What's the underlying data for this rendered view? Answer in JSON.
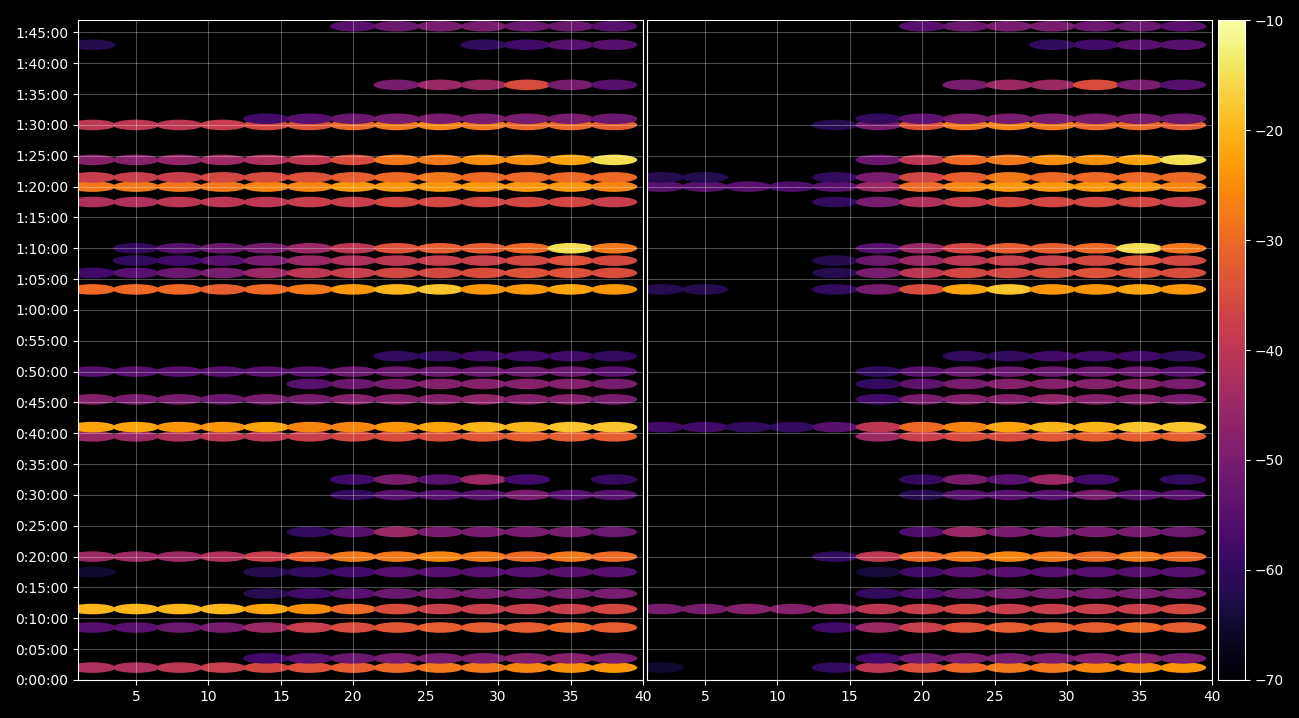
{
  "chart_data": {
    "type": "heatmap",
    "x": [
      2,
      5,
      8,
      11,
      14,
      17,
      20,
      23,
      26,
      29,
      32,
      35,
      38
    ],
    "y": [
      120,
      210,
      510,
      690,
      840,
      1050,
      1200,
      1440,
      1800,
      1950,
      2370,
      2460,
      2730,
      2880,
      3000,
      3150,
      3800,
      3960,
      4080,
      4200,
      4650,
      4800,
      4890,
      5060,
      5400,
      5460,
      5790,
      6180,
      6360
    ],
    "ylim": [
      0,
      6420
    ],
    "yticks": [
      {
        "value": 0,
        "label": "0:00:00"
      },
      {
        "value": 300,
        "label": "0:05:00"
      },
      {
        "value": 600,
        "label": "0:10:00"
      },
      {
        "value": 900,
        "label": "0:15:00"
      },
      {
        "value": 1200,
        "label": "0:20:00"
      },
      {
        "value": 1500,
        "label": "0:25:00"
      },
      {
        "value": 1800,
        "label": "0:30:00"
      },
      {
        "value": 2100,
        "label": "0:35:00"
      },
      {
        "value": 2400,
        "label": "0:40:00"
      },
      {
        "value": 2700,
        "label": "0:45:00"
      },
      {
        "value": 3000,
        "label": "0:50:00"
      },
      {
        "value": 3300,
        "label": "0:55:00"
      },
      {
        "value": 3600,
        "label": "1:00:00"
      },
      {
        "value": 3900,
        "label": "1:05:00"
      },
      {
        "value": 4200,
        "label": "1:10:00"
      },
      {
        "value": 4500,
        "label": "1:15:00"
      },
      {
        "value": 4800,
        "label": "1:20:00"
      },
      {
        "value": 5100,
        "label": "1:25:00"
      },
      {
        "value": 5400,
        "label": "1:30:00"
      },
      {
        "value": 5700,
        "label": "1:35:00"
      },
      {
        "value": 6000,
        "label": "1:40:00"
      },
      {
        "value": 6300,
        "label": "1:45:00"
      }
    ],
    "grid": true,
    "colorbar": {
      "range": [
        -70,
        -10
      ],
      "ticks": [
        {
          "value": -70,
          "label": "−70"
        },
        {
          "value": -60,
          "label": "−60"
        },
        {
          "value": -50,
          "label": "−50"
        },
        {
          "value": -40,
          "label": "−40"
        },
        {
          "value": -30,
          "label": "−30"
        },
        {
          "value": -20,
          "label": "−20"
        },
        {
          "value": -10,
          "label": "−10"
        }
      ]
    },
    "panels": [
      {
        "xlim": [
          1,
          40
        ],
        "xticks": [
          5,
          10,
          15,
          20,
          25,
          30,
          35,
          40
        ],
        "cells": [
          [
            -42,
            -42,
            -40,
            -38,
            -36,
            -34,
            -32,
            -30,
            -28,
            -28,
            -26,
            -25,
            -24
          ],
          [
            null,
            null,
            null,
            null,
            -58,
            -55,
            -52,
            -50,
            -50,
            -50,
            -48,
            -48,
            -50
          ],
          [
            -55,
            -55,
            -52,
            -50,
            -45,
            -38,
            -35,
            -33,
            -32,
            -32,
            -32,
            -30,
            -32
          ],
          [
            -20,
            -20,
            -20,
            -20,
            -22,
            -25,
            -30,
            -35,
            -38,
            -38,
            -38,
            -38,
            -36
          ],
          [
            null,
            null,
            null,
            null,
            -62,
            -58,
            -55,
            -52,
            -50,
            -50,
            -50,
            -50,
            -50
          ],
          [
            -65,
            null,
            null,
            null,
            -62,
            -60,
            -58,
            -55,
            -55,
            -55,
            -55,
            -55,
            -55
          ],
          [
            -45,
            -45,
            -45,
            -42,
            -38,
            -32,
            -28,
            -28,
            -26,
            -28,
            -30,
            -28,
            -30
          ],
          [
            null,
            null,
            null,
            null,
            null,
            -60,
            -55,
            -45,
            -50,
            -50,
            -50,
            -50,
            -52
          ],
          [
            null,
            null,
            null,
            null,
            null,
            null,
            -60,
            -55,
            -55,
            -55,
            -50,
            -55,
            -55
          ],
          [
            null,
            null,
            null,
            null,
            null,
            null,
            -58,
            -50,
            -55,
            -45,
            -58,
            null,
            -60
          ],
          [
            -45,
            -45,
            -42,
            -40,
            -40,
            -38,
            -36,
            -35,
            -35,
            -33,
            -32,
            -32,
            -32
          ],
          [
            -22,
            -22,
            -24,
            -24,
            -22,
            -26,
            -26,
            -24,
            -22,
            -20,
            -20,
            -18,
            -18
          ],
          [
            -48,
            -50,
            -50,
            -52,
            -50,
            -50,
            -48,
            -48,
            -48,
            -46,
            -48,
            -48,
            -50
          ],
          [
            null,
            null,
            null,
            null,
            null,
            -55,
            -52,
            -50,
            -48,
            -48,
            -48,
            -48,
            -50
          ],
          [
            -55,
            -55,
            -55,
            -55,
            -55,
            -55,
            -52,
            -52,
            -52,
            -52,
            -52,
            -52,
            -55
          ],
          [
            null,
            null,
            null,
            null,
            null,
            null,
            null,
            -60,
            -60,
            -58,
            -58,
            -58,
            -60
          ],
          [
            -30,
            -30,
            -30,
            -32,
            -30,
            -28,
            -24,
            -20,
            -18,
            -24,
            -24,
            -22,
            -24
          ],
          [
            -58,
            -55,
            -52,
            -50,
            -45,
            -40,
            -38,
            -36,
            -36,
            -35,
            -34,
            -34,
            -35
          ],
          [
            null,
            -60,
            -58,
            -55,
            -50,
            -45,
            -42,
            -40,
            -38,
            -38,
            -36,
            -34,
            -36
          ],
          [
            null,
            -60,
            -55,
            -52,
            -50,
            -45,
            -40,
            -34,
            -32,
            -32,
            -30,
            -15,
            -28
          ],
          [
            -42,
            -42,
            -40,
            -40,
            -40,
            -38,
            -38,
            -36,
            -36,
            -36,
            -36,
            -36,
            -38
          ],
          [
            -28,
            -28,
            -28,
            -28,
            -26,
            -26,
            -24,
            -24,
            -24,
            -24,
            -24,
            -24,
            -26
          ],
          [
            -38,
            -38,
            -38,
            -36,
            -35,
            -34,
            -32,
            -30,
            -28,
            -30,
            -30,
            -30,
            -30
          ],
          [
            -48,
            -48,
            -46,
            -44,
            -42,
            -40,
            -35,
            -28,
            -28,
            -25,
            -25,
            -22,
            -15
          ],
          [
            -40,
            -40,
            -40,
            -38,
            -36,
            -34,
            -30,
            -28,
            -26,
            -28,
            -30,
            -30,
            -32
          ],
          [
            null,
            null,
            null,
            null,
            -58,
            -55,
            -52,
            -50,
            -50,
            -50,
            -50,
            -50,
            -52
          ],
          [
            null,
            null,
            null,
            null,
            null,
            null,
            null,
            -50,
            -45,
            -45,
            -35,
            -50,
            -55
          ],
          [
            -62,
            null,
            null,
            null,
            null,
            null,
            null,
            null,
            null,
            -60,
            -58,
            -55,
            -55
          ],
          [
            null,
            null,
            null,
            null,
            null,
            null,
            -55,
            -52,
            -50,
            -50,
            -52,
            -52,
            -55
          ]
        ]
      },
      {
        "xlim": [
          1,
          40
        ],
        "xticks": [
          5,
          10,
          15,
          20,
          25,
          30,
          35,
          40
        ],
        "cells": [
          [
            -65,
            null,
            null,
            null,
            -60,
            -40,
            -34,
            -30,
            -28,
            -28,
            -26,
            -25,
            -24
          ],
          [
            null,
            null,
            null,
            null,
            null,
            -58,
            -52,
            -50,
            -50,
            -50,
            -48,
            -48,
            -50
          ],
          [
            null,
            null,
            null,
            null,
            -58,
            -45,
            -38,
            -34,
            -32,
            -32,
            -32,
            -30,
            -32
          ],
          [
            -50,
            -50,
            -48,
            -48,
            -45,
            -40,
            -38,
            -36,
            -38,
            -38,
            -38,
            -38,
            -36
          ],
          [
            null,
            null,
            null,
            null,
            null,
            -60,
            -56,
            -52,
            -50,
            -50,
            -50,
            -50,
            -50
          ],
          [
            null,
            null,
            null,
            null,
            null,
            -64,
            -58,
            -55,
            -55,
            -55,
            -55,
            -55,
            -55
          ],
          [
            null,
            null,
            null,
            null,
            -60,
            -40,
            -30,
            -28,
            -26,
            -28,
            -30,
            -28,
            -30
          ],
          [
            null,
            null,
            null,
            null,
            null,
            null,
            -56,
            -45,
            -50,
            -50,
            -50,
            -50,
            -52
          ],
          [
            null,
            null,
            null,
            null,
            null,
            null,
            -62,
            -55,
            -55,
            -55,
            -50,
            -55,
            -55
          ],
          [
            null,
            null,
            null,
            null,
            null,
            null,
            -60,
            -50,
            -55,
            -45,
            -58,
            null,
            -60
          ],
          [
            null,
            null,
            null,
            null,
            null,
            -45,
            -38,
            -35,
            -35,
            -33,
            -32,
            -32,
            -32
          ],
          [
            -58,
            -58,
            -60,
            -60,
            -55,
            -40,
            -30,
            -26,
            -22,
            -20,
            -20,
            -18,
            -18
          ],
          [
            null,
            null,
            null,
            null,
            null,
            -58,
            -50,
            -48,
            -48,
            -46,
            -48,
            -48,
            -50
          ],
          [
            null,
            null,
            null,
            null,
            null,
            -60,
            -54,
            -50,
            -48,
            -48,
            -48,
            -48,
            -50
          ],
          [
            null,
            null,
            null,
            null,
            null,
            -60,
            -55,
            -52,
            -52,
            -52,
            -52,
            -52,
            -55
          ],
          [
            null,
            null,
            null,
            null,
            null,
            null,
            null,
            -60,
            -60,
            -58,
            -58,
            -58,
            -60
          ],
          [
            -62,
            -62,
            null,
            null,
            -60,
            -50,
            -35,
            -22,
            -18,
            -24,
            -24,
            -22,
            -24
          ],
          [
            null,
            null,
            null,
            null,
            -62,
            -50,
            -40,
            -36,
            -36,
            -35,
            -34,
            -34,
            -35
          ],
          [
            null,
            null,
            null,
            null,
            -62,
            -52,
            -45,
            -40,
            -38,
            -38,
            -36,
            -34,
            -36
          ],
          [
            null,
            null,
            null,
            null,
            null,
            -55,
            -45,
            -36,
            -32,
            -32,
            -30,
            -15,
            -28
          ],
          [
            null,
            null,
            null,
            null,
            -60,
            -50,
            -42,
            -38,
            -36,
            -36,
            -36,
            -36,
            -38
          ],
          [
            -55,
            -55,
            -55,
            -56,
            -55,
            -45,
            -30,
            -26,
            -24,
            -24,
            -24,
            -24,
            -26
          ],
          [
            -62,
            -62,
            null,
            null,
            -60,
            -50,
            -36,
            -32,
            -28,
            -30,
            -30,
            -30,
            -30
          ],
          [
            null,
            null,
            null,
            null,
            null,
            -52,
            -40,
            -30,
            -28,
            -25,
            -25,
            -22,
            -15
          ],
          [
            null,
            null,
            null,
            null,
            -62,
            -50,
            -34,
            -28,
            -26,
            -28,
            -30,
            -30,
            -32
          ],
          [
            null,
            null,
            null,
            null,
            null,
            -60,
            -54,
            -50,
            -50,
            -50,
            -50,
            -50,
            -52
          ],
          [
            null,
            null,
            null,
            null,
            null,
            null,
            null,
            -50,
            -45,
            -45,
            -35,
            -50,
            -55
          ],
          [
            null,
            null,
            null,
            null,
            null,
            null,
            null,
            null,
            null,
            -60,
            -58,
            -55,
            -55
          ],
          [
            null,
            null,
            null,
            null,
            null,
            null,
            -55,
            -52,
            -50,
            -50,
            -52,
            -52,
            -55
          ]
        ]
      }
    ]
  }
}
